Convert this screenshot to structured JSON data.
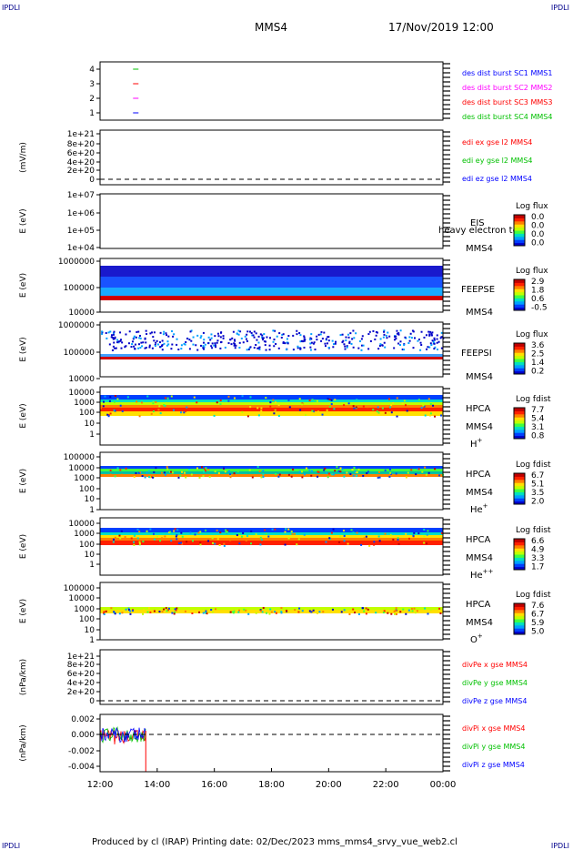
{
  "header": {
    "corner_label": "IPDLI",
    "spacecraft": "MMS4",
    "datetime": "17/Nov/2019 12:00"
  },
  "footer": {
    "text": "Produced by cl (IRAP)   Printing date: 02/Dec/2023   mms_mms4_srvy_vue_web2.cl"
  },
  "colors": {
    "red": "#ff0000",
    "green": "#00c000",
    "blue": "#0000ff",
    "magenta": "#ff00ff"
  },
  "chart_data": [
    {
      "type": "line",
      "id": "burst",
      "ytick_labels": [
        "4",
        "3",
        "2",
        "1"
      ],
      "legend": [
        {
          "label": "des dist burst SC1 MMS1",
          "color": "#0000ff"
        },
        {
          "label": "des dist burst SC2 MMS2",
          "color": "#ff00ff"
        },
        {
          "label": "des dist burst SC3 MMS3",
          "color": "#ff0000"
        },
        {
          "label": "des dist burst SC4 MMS4",
          "color": "#00c000"
        }
      ],
      "markers": [
        {
          "sc": 4,
          "t": 13.25,
          "color": "#00c000"
        },
        {
          "sc": 3,
          "t": 13.25,
          "color": "#ff0000"
        },
        {
          "sc": 2,
          "t": 13.25,
          "color": "#ff00ff"
        },
        {
          "sc": 1,
          "t": 13.25,
          "color": "#0000ff"
        }
      ]
    },
    {
      "type": "line",
      "id": "edi",
      "ylabel": "(mV/m)",
      "ytick_labels": [
        "1e+21",
        "8e+20",
        "6e+20",
        "4e+20",
        "2e+20",
        "0"
      ],
      "legend": [
        {
          "label": "edi ex gse l2 MMS4",
          "color": "#ff0000"
        },
        {
          "label": "edi ey gse l2 MMS4",
          "color": "#00c000"
        },
        {
          "label": "edi ez gse l2 MMS4",
          "color": "#0000ff"
        }
      ]
    },
    {
      "type": "heatmap",
      "id": "eis",
      "ylabel": "E (eV)",
      "ytick_labels": [
        "1e+07",
        "1e+06",
        "1e+05",
        "1e+04"
      ],
      "instrument": "EIS",
      "spacecraft": "MMS4",
      "extra_label": "heavy electron to",
      "cbar_title": "Log flux",
      "cbar_ticks": [
        "0.0",
        "0.0",
        "0.0",
        "0.0"
      ]
    },
    {
      "type": "heatmap",
      "id": "feepse",
      "ylabel": "E (eV)",
      "ytick_labels": [
        "1000000",
        "100000",
        "10000"
      ],
      "instrument": "FEEPSE",
      "spacecraft": "MMS4",
      "cbar_title": "Log flux",
      "cbar_ticks": [
        "2.9",
        "1.8",
        "0.6",
        "-0.5"
      ]
    },
    {
      "type": "heatmap",
      "id": "feepsi",
      "ylabel": "E (eV)",
      "ytick_labels": [
        "1000000",
        "100000",
        "10000"
      ],
      "instrument": "FEEPSI",
      "spacecraft": "MMS4",
      "cbar_title": "Log flux",
      "cbar_ticks": [
        "3.6",
        "2.5",
        "1.4",
        "0.2"
      ]
    },
    {
      "type": "heatmap",
      "id": "hpca-h",
      "ylabel": "E (eV)",
      "ytick_labels": [
        "10000",
        "1000",
        "100",
        "10",
        "1"
      ],
      "instrument": "HPCA",
      "spacecraft": "MMS4",
      "species": "H",
      "species_sup": "+",
      "cbar_title": "Log fdist",
      "cbar_ticks": [
        "7.7",
        "5.4",
        "3.1",
        "0.8"
      ]
    },
    {
      "type": "heatmap",
      "id": "hpca-he",
      "ylabel": "E (eV)",
      "ytick_labels": [
        "100000",
        "10000",
        "1000",
        "100",
        "10",
        "1"
      ],
      "instrument": "HPCA",
      "spacecraft": "MMS4",
      "species": "He",
      "species_sup": "+",
      "cbar_title": "Log fdist",
      "cbar_ticks": [
        "6.7",
        "5.1",
        "3.5",
        "2.0"
      ]
    },
    {
      "type": "heatmap",
      "id": "hpca-he2",
      "ylabel": "E (eV)",
      "ytick_labels": [
        "10000",
        "1000",
        "100",
        "10",
        "1"
      ],
      "instrument": "HPCA",
      "spacecraft": "MMS4",
      "species": "He",
      "species_sup": "++",
      "cbar_title": "Log fdist",
      "cbar_ticks": [
        "6.6",
        "4.9",
        "3.3",
        "1.7"
      ]
    },
    {
      "type": "heatmap",
      "id": "hpca-o",
      "ylabel": "E (eV)",
      "ytick_labels": [
        "100000",
        "10000",
        "1000",
        "100",
        "10",
        "1"
      ],
      "instrument": "HPCA",
      "spacecraft": "MMS4",
      "species": "O",
      "species_sup": "+",
      "cbar_title": "Log fdist",
      "cbar_ticks": [
        "7.6",
        "6.7",
        "5.9",
        "5.0"
      ]
    },
    {
      "type": "line",
      "id": "divpe",
      "ylabel": "(nPa/km)",
      "ytick_labels": [
        "1e+21",
        "8e+20",
        "6e+20",
        "4e+20",
        "2e+20",
        "0"
      ],
      "legend": [
        {
          "label": "divPe x gse MMS4",
          "color": "#ff0000"
        },
        {
          "label": "divPe y gse MMS4",
          "color": "#00c000"
        },
        {
          "label": "divPe z gse MMS4",
          "color": "#0000ff"
        }
      ]
    },
    {
      "type": "line",
      "id": "divpi",
      "ylabel": "(nPa/km)",
      "ytick_labels": [
        "0.002",
        "0.000",
        "-0.002",
        "-0.004"
      ],
      "ylim": [
        -0.0045,
        0.0025
      ],
      "data_end_hour": 13.6,
      "legend": [
        {
          "label": "divPi x gse MMS4",
          "color": "#ff0000"
        },
        {
          "label": "divPi y gse MMS4",
          "color": "#00c000"
        },
        {
          "label": "divPi z gse MMS4",
          "color": "#0000ff"
        }
      ],
      "x_tick_labels": [
        "12:00",
        "14:00",
        "16:00",
        "18:00",
        "20:00",
        "22:00",
        "00:00"
      ],
      "xlim_hours": [
        12,
        24
      ]
    }
  ]
}
